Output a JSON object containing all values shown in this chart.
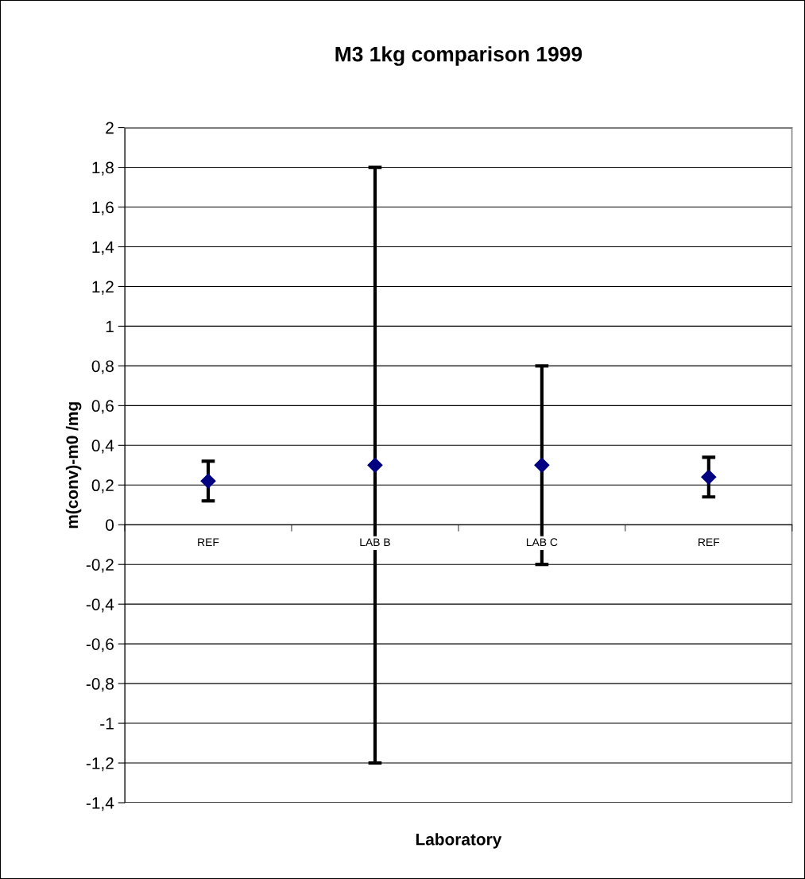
{
  "chart_data": {
    "type": "scatter",
    "title": "M3 1kg comparison 1999",
    "xlabel": "Laboratory",
    "ylabel": "m(conv)-m0 /mg",
    "categories": [
      "REF",
      "LAB B",
      "LAB C",
      "REF"
    ],
    "series": [
      {
        "color": "#000080",
        "values": [
          0.22,
          0.3,
          0.3,
          0.24
        ],
        "errors": [
          0.1,
          1.5,
          0.5,
          0.1
        ]
      }
    ],
    "ylim": [
      -1.4,
      2
    ],
    "yticks": [
      {
        "value": -1.4,
        "label": "-1,4"
      },
      {
        "value": -1.2,
        "label": "-1,2"
      },
      {
        "value": -1,
        "label": "-1"
      },
      {
        "value": -0.8,
        "label": "-0,8"
      },
      {
        "value": -0.6,
        "label": "-0,6"
      },
      {
        "value": -0.4,
        "label": "-0,4"
      },
      {
        "value": -0.2,
        "label": "-0,2"
      },
      {
        "value": 0,
        "label": "0"
      },
      {
        "value": 0.2,
        "label": "0,2"
      },
      {
        "value": 0.4,
        "label": "0,4"
      },
      {
        "value": 0.6,
        "label": "0,6"
      },
      {
        "value": 0.8,
        "label": "0,8"
      },
      {
        "value": 1,
        "label": "1"
      },
      {
        "value": 1.2,
        "label": "1,2"
      },
      {
        "value": 1.4,
        "label": "1,4"
      },
      {
        "value": 1.6,
        "label": "1,6"
      },
      {
        "value": 1.8,
        "label": "1,8"
      },
      {
        "value": 2,
        "label": "2"
      }
    ],
    "grid": "y",
    "marker": "diamond"
  }
}
